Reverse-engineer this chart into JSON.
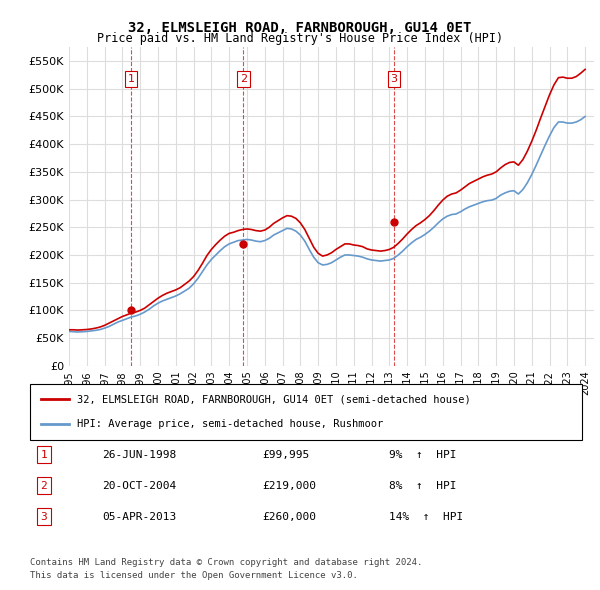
{
  "title": "32, ELMSLEIGH ROAD, FARNBOROUGH, GU14 0ET",
  "subtitle": "Price paid vs. HM Land Registry's House Price Index (HPI)",
  "legend_line1": "32, ELMSLEIGH ROAD, FARNBOROUGH, GU14 0ET (semi-detached house)",
  "legend_line2": "HPI: Average price, semi-detached house, Rushmoor",
  "footer1": "Contains HM Land Registry data © Crown copyright and database right 2024.",
  "footer2": "This data is licensed under the Open Government Licence v3.0.",
  "transactions": [
    {
      "num": 1,
      "date": "26-JUN-1998",
      "price": 99995,
      "pct": "9%",
      "dir": "↑"
    },
    {
      "num": 2,
      "date": "20-OCT-2004",
      "price": 219000,
      "pct": "8%",
      "dir": "↑"
    },
    {
      "num": 3,
      "date": "05-APR-2013",
      "price": 260000,
      "pct": "14%",
      "dir": "↑"
    }
  ],
  "ylim": [
    0,
    575000
  ],
  "yticks": [
    0,
    50000,
    100000,
    150000,
    200000,
    250000,
    300000,
    350000,
    400000,
    450000,
    500000,
    550000
  ],
  "ytick_labels": [
    "£0",
    "£50K",
    "£100K",
    "£150K",
    "£200K",
    "£250K",
    "£300K",
    "£350K",
    "£400K",
    "£450K",
    "£500K",
    "£550K"
  ],
  "red_color": "#cc0000",
  "blue_color": "#6699cc",
  "vline_color": "#cc0000",
  "grid_color": "#dddddd",
  "background_color": "#ffffff",
  "hpi_data": {
    "dates": [
      1995.0,
      1995.25,
      1995.5,
      1995.75,
      1996.0,
      1996.25,
      1996.5,
      1996.75,
      1997.0,
      1997.25,
      1997.5,
      1997.75,
      1998.0,
      1998.25,
      1998.5,
      1998.75,
      1999.0,
      1999.25,
      1999.5,
      1999.75,
      2000.0,
      2000.25,
      2000.5,
      2000.75,
      2001.0,
      2001.25,
      2001.5,
      2001.75,
      2002.0,
      2002.25,
      2002.5,
      2002.75,
      2003.0,
      2003.25,
      2003.5,
      2003.75,
      2004.0,
      2004.25,
      2004.5,
      2004.75,
      2005.0,
      2005.25,
      2005.5,
      2005.75,
      2006.0,
      2006.25,
      2006.5,
      2006.75,
      2007.0,
      2007.25,
      2007.5,
      2007.75,
      2008.0,
      2008.25,
      2008.5,
      2008.75,
      2009.0,
      2009.25,
      2009.5,
      2009.75,
      2010.0,
      2010.25,
      2010.5,
      2010.75,
      2011.0,
      2011.25,
      2011.5,
      2011.75,
      2012.0,
      2012.25,
      2012.5,
      2012.75,
      2013.0,
      2013.25,
      2013.5,
      2013.75,
      2014.0,
      2014.25,
      2014.5,
      2014.75,
      2015.0,
      2015.25,
      2015.5,
      2015.75,
      2016.0,
      2016.25,
      2016.5,
      2016.75,
      2017.0,
      2017.25,
      2017.5,
      2017.75,
      2018.0,
      2018.25,
      2018.5,
      2018.75,
      2019.0,
      2019.25,
      2019.5,
      2019.75,
      2020.0,
      2020.25,
      2020.5,
      2020.75,
      2021.0,
      2021.25,
      2021.5,
      2021.75,
      2022.0,
      2022.25,
      2022.5,
      2022.75,
      2023.0,
      2023.25,
      2023.5,
      2023.75,
      2024.0
    ],
    "values": [
      62000,
      61500,
      61000,
      61500,
      62000,
      63000,
      64000,
      65500,
      68000,
      71000,
      75000,
      79000,
      82000,
      85000,
      88000,
      90000,
      93000,
      97000,
      102000,
      108000,
      113000,
      117000,
      120000,
      123000,
      126000,
      130000,
      135000,
      140000,
      148000,
      158000,
      170000,
      182000,
      192000,
      200000,
      208000,
      215000,
      220000,
      223000,
      226000,
      227000,
      228000,
      227000,
      225000,
      224000,
      226000,
      230000,
      236000,
      240000,
      244000,
      248000,
      247000,
      243000,
      236000,
      225000,
      210000,
      196000,
      186000,
      182000,
      183000,
      186000,
      191000,
      196000,
      200000,
      200000,
      199000,
      198000,
      196000,
      193000,
      191000,
      190000,
      189000,
      190000,
      191000,
      194000,
      200000,
      207000,
      215000,
      222000,
      228000,
      232000,
      237000,
      243000,
      250000,
      258000,
      265000,
      270000,
      273000,
      274000,
      278000,
      283000,
      287000,
      290000,
      293000,
      296000,
      298000,
      299000,
      302000,
      308000,
      312000,
      315000,
      316000,
      310000,
      318000,
      330000,
      345000,
      362000,
      380000,
      398000,
      415000,
      430000,
      440000,
      440000,
      438000,
      438000,
      440000,
      444000,
      450000
    ],
    "red_values": [
      65000,
      65000,
      64500,
      65000,
      65500,
      66500,
      68000,
      70000,
      73000,
      77000,
      81000,
      85000,
      89000,
      92000,
      95000,
      97000,
      100000,
      104000,
      110000,
      116000,
      122000,
      127000,
      131000,
      134000,
      137000,
      141000,
      147000,
      153000,
      161000,
      172000,
      185000,
      199000,
      210000,
      219000,
      227000,
      234000,
      239000,
      241000,
      244000,
      246000,
      247000,
      246000,
      244000,
      243000,
      245000,
      250000,
      257000,
      262000,
      267000,
      271000,
      270000,
      266000,
      258000,
      246000,
      230000,
      214000,
      203000,
      198000,
      200000,
      204000,
      210000,
      215000,
      220000,
      220000,
      218000,
      217000,
      215000,
      211000,
      209000,
      208000,
      207000,
      208000,
      210000,
      214000,
      221000,
      229000,
      238000,
      246000,
      253000,
      258000,
      264000,
      271000,
      280000,
      290000,
      299000,
      306000,
      310000,
      312000,
      317000,
      323000,
      329000,
      333000,
      337000,
      341000,
      344000,
      346000,
      350000,
      357000,
      363000,
      367000,
      368000,
      362000,
      372000,
      387000,
      405000,
      425000,
      447000,
      468000,
      489000,
      507000,
      520000,
      521000,
      519000,
      519000,
      522000,
      528000,
      535000
    ]
  },
  "transaction_dates": [
    1998.48,
    2004.8,
    2013.25
  ],
  "transaction_prices": [
    99995,
    219000,
    260000
  ],
  "xlim": [
    1995.0,
    2024.5
  ],
  "xticks": [
    1995,
    1996,
    1997,
    1998,
    1999,
    2000,
    2001,
    2002,
    2003,
    2004,
    2005,
    2006,
    2007,
    2008,
    2009,
    2010,
    2011,
    2012,
    2013,
    2014,
    2015,
    2016,
    2017,
    2018,
    2019,
    2020,
    2021,
    2022,
    2023,
    2024
  ]
}
